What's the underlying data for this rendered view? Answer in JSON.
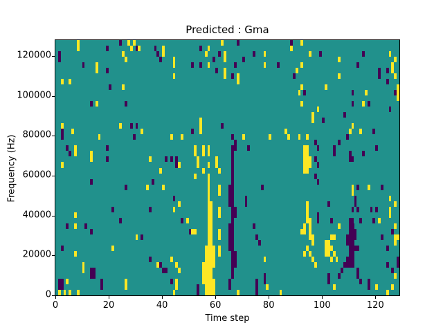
{
  "figure": {
    "background": "#ffffff"
  },
  "chart_data": {
    "type": "heatmap",
    "title": "Predicted : Gma",
    "xlabel": "Time step",
    "ylabel": "Frequency (Hz)",
    "x_range": [
      0,
      129
    ],
    "y_range": [
      0,
      128000
    ],
    "x_ticks": [
      0,
      20,
      40,
      60,
      80,
      100,
      120
    ],
    "x_tick_labels": [
      "0",
      "20",
      "40",
      "60",
      "80",
      "100",
      "120"
    ],
    "y_ticks": [
      0,
      20000,
      40000,
      60000,
      80000,
      100000,
      120000
    ],
    "y_tick_labels": [
      "0",
      "20000",
      "40000",
      "60000",
      "80000",
      "100000",
      "120000"
    ],
    "grid": {
      "cols": 129,
      "rows": 46
    },
    "legend": "none",
    "colormap": {
      "name": "viridis",
      "background_mid": "#21918c",
      "high": "#fde725",
      "low": "#440154"
    },
    "cells": {
      "yellow": [
        [
          8,
          45
        ],
        [
          8,
          44
        ],
        [
          27,
          45
        ],
        [
          29,
          45
        ],
        [
          28,
          44
        ],
        [
          31,
          44
        ],
        [
          40,
          44
        ],
        [
          40,
          43
        ],
        [
          25,
          43
        ],
        [
          26,
          42
        ],
        [
          15,
          41
        ],
        [
          15,
          40
        ],
        [
          44,
          39
        ],
        [
          2,
          38
        ],
        [
          5,
          38
        ],
        [
          25,
          37
        ],
        [
          15,
          34
        ],
        [
          2,
          30
        ],
        [
          24,
          30
        ],
        [
          6,
          29
        ],
        [
          32,
          29
        ],
        [
          16,
          28
        ],
        [
          44,
          42
        ],
        [
          44,
          41
        ],
        [
          2,
          23
        ],
        [
          7,
          26
        ],
        [
          7,
          25
        ],
        [
          13,
          25
        ],
        [
          13,
          24
        ],
        [
          35,
          24
        ],
        [
          39,
          22
        ],
        [
          34,
          19
        ],
        [
          40,
          19
        ],
        [
          62,
          45
        ],
        [
          57,
          44
        ],
        [
          56,
          43
        ],
        [
          63,
          43
        ],
        [
          63,
          42
        ],
        [
          78,
          43
        ],
        [
          78,
          41
        ],
        [
          57,
          41
        ],
        [
          63,
          40
        ],
        [
          63,
          39
        ],
        [
          68,
          39
        ],
        [
          68,
          38
        ],
        [
          70,
          28
        ],
        [
          80,
          28
        ],
        [
          54,
          31
        ],
        [
          54,
          30
        ],
        [
          54,
          29
        ],
        [
          43,
          28
        ],
        [
          47,
          28
        ],
        [
          92,
          45
        ],
        [
          88,
          44
        ],
        [
          95,
          43
        ],
        [
          106,
          42
        ],
        [
          125,
          43
        ],
        [
          127,
          42
        ],
        [
          92,
          41
        ],
        [
          90,
          40
        ],
        [
          126,
          41
        ],
        [
          126,
          40
        ],
        [
          106,
          39
        ],
        [
          127,
          39
        ],
        [
          91,
          36
        ],
        [
          128,
          37
        ],
        [
          92,
          37
        ],
        [
          101,
          37
        ],
        [
          128,
          36
        ],
        [
          116,
          36
        ],
        [
          92,
          34
        ],
        [
          115,
          34
        ],
        [
          98,
          33
        ],
        [
          96,
          32
        ],
        [
          96,
          31
        ],
        [
          128,
          35
        ],
        [
          111,
          30
        ],
        [
          114,
          29
        ],
        [
          110,
          29
        ],
        [
          86,
          29
        ],
        [
          87,
          28
        ],
        [
          91,
          28
        ],
        [
          94,
          28
        ],
        [
          7,
          14
        ],
        [
          30,
          10
        ],
        [
          21,
          8
        ],
        [
          7,
          12
        ],
        [
          7,
          7
        ],
        [
          38,
          5
        ],
        [
          10,
          5
        ],
        [
          10,
          4
        ],
        [
          4,
          2
        ],
        [
          26,
          2
        ],
        [
          26,
          1
        ],
        [
          45,
          1
        ],
        [
          43,
          6
        ],
        [
          45,
          5
        ],
        [
          46,
          4
        ],
        [
          45,
          2
        ],
        [
          44,
          15
        ],
        [
          46,
          16
        ],
        [
          49,
          13
        ],
        [
          51,
          11
        ],
        [
          46,
          23
        ],
        [
          1,
          0
        ],
        [
          3,
          0
        ],
        [
          5,
          0
        ],
        [
          8,
          0
        ],
        [
          44,
          0
        ],
        [
          68,
          0
        ],
        [
          84,
          0
        ],
        [
          104,
          1
        ],
        [
          124,
          0
        ],
        [
          126,
          1
        ],
        [
          120,
          1
        ],
        [
          52,
          26
        ],
        [
          52,
          25
        ],
        [
          53,
          24
        ],
        [
          53,
          23
        ],
        [
          55,
          26
        ],
        [
          55,
          25
        ],
        [
          52,
          21
        ],
        [
          55,
          22
        ],
        [
          57,
          26
        ],
        [
          57,
          25
        ],
        [
          57,
          23
        ],
        [
          57,
          21
        ],
        [
          60,
          24
        ],
        [
          60,
          23
        ],
        [
          61,
          22
        ],
        [
          61,
          19
        ],
        [
          61,
          18
        ],
        [
          61,
          15
        ],
        [
          61,
          14
        ],
        [
          61,
          11
        ],
        [
          61,
          10
        ],
        [
          61,
          8
        ],
        [
          61,
          7
        ],
        [
          55,
          5
        ],
        [
          55,
          4
        ],
        [
          55,
          3
        ],
        [
          55,
          2
        ],
        [
          78,
          6
        ],
        [
          79,
          1
        ],
        [
          52,
          11
        ],
        [
          111,
          19
        ],
        [
          111,
          18
        ],
        [
          117,
          19
        ],
        [
          125,
          17
        ],
        [
          125,
          15
        ],
        [
          125,
          14
        ],
        [
          121,
          13
        ],
        [
          128,
          10
        ],
        [
          106,
          12
        ],
        [
          127,
          16
        ],
        [
          127,
          12
        ],
        [
          127,
          10
        ],
        [
          127,
          9
        ],
        [
          127,
          3
        ],
        [
          94,
          16
        ],
        [
          94,
          15
        ],
        [
          94,
          14
        ],
        [
          94,
          13
        ],
        [
          95,
          13
        ],
        [
          95,
          12
        ],
        [
          95,
          11
        ],
        [
          95,
          10
        ],
        [
          96,
          10
        ],
        [
          96,
          9
        ],
        [
          93,
          12
        ],
        [
          93,
          11
        ],
        [
          92,
          11
        ],
        [
          94,
          8
        ],
        [
          95,
          7
        ],
        [
          93,
          7
        ],
        [
          96,
          6
        ],
        [
          97,
          5
        ],
        [
          101,
          9
        ],
        [
          102,
          9
        ],
        [
          101,
          8
        ],
        [
          102,
          8
        ],
        [
          103,
          8
        ],
        [
          101,
          7
        ],
        [
          102,
          7
        ],
        [
          104,
          7
        ],
        [
          103,
          6
        ],
        [
          105,
          6
        ],
        [
          104,
          10
        ],
        [
          103,
          10
        ]
      ],
      "yellow_blocks": [
        [
          93,
          22,
          2,
          5
        ],
        [
          95,
          23,
          1,
          2
        ],
        [
          57,
          17,
          1,
          4
        ],
        [
          57,
          9,
          2,
          8
        ],
        [
          56,
          3,
          3,
          6
        ],
        [
          56,
          0,
          4,
          3
        ],
        [
          59,
          5,
          1,
          4
        ]
      ],
      "purple": [
        [
          24,
          45
        ],
        [
          19,
          44
        ],
        [
          30,
          44
        ],
        [
          37,
          44
        ],
        [
          1,
          43
        ],
        [
          1,
          42
        ],
        [
          38,
          43
        ],
        [
          39,
          42
        ],
        [
          10,
          41
        ],
        [
          19,
          40
        ],
        [
          20,
          37
        ],
        [
          13,
          34
        ],
        [
          26,
          34
        ],
        [
          28,
          30
        ],
        [
          30,
          30
        ],
        [
          2,
          29
        ],
        [
          29,
          28
        ],
        [
          2,
          28
        ],
        [
          4,
          26
        ],
        [
          19,
          26
        ],
        [
          19,
          24
        ],
        [
          5,
          25
        ],
        [
          41,
          24
        ],
        [
          45,
          24
        ],
        [
          43,
          24
        ],
        [
          45,
          23
        ],
        [
          13,
          20
        ],
        [
          36,
          20
        ],
        [
          26,
          19
        ],
        [
          44,
          17
        ],
        [
          47,
          13
        ],
        [
          50,
          11
        ],
        [
          13,
          11
        ],
        [
          11,
          12
        ],
        [
          4,
          12
        ],
        [
          21,
          15
        ],
        [
          24,
          13
        ],
        [
          35,
          15
        ],
        [
          32,
          10
        ],
        [
          2,
          8
        ],
        [
          35,
          6
        ],
        [
          39,
          5
        ],
        [
          40,
          4
        ],
        [
          41,
          4
        ],
        [
          13,
          4
        ],
        [
          14,
          4
        ],
        [
          13,
          3
        ],
        [
          14,
          3
        ],
        [
          1,
          2
        ],
        [
          1,
          1
        ],
        [
          2,
          2
        ],
        [
          2,
          1
        ],
        [
          17,
          2
        ],
        [
          17,
          1
        ],
        [
          43,
          2
        ],
        [
          53,
          1
        ],
        [
          53,
          0
        ],
        [
          54,
          44
        ],
        [
          61,
          43
        ],
        [
          59,
          42
        ],
        [
          70,
          42
        ],
        [
          74,
          43
        ],
        [
          51,
          41
        ],
        [
          54,
          41
        ],
        [
          67,
          41
        ],
        [
          60,
          40
        ],
        [
          66,
          39
        ],
        [
          62,
          30
        ],
        [
          51,
          29
        ],
        [
          66,
          28
        ],
        [
          68,
          45
        ],
        [
          88,
          45
        ],
        [
          83,
          41
        ],
        [
          89,
          39
        ],
        [
          93,
          36
        ],
        [
          99,
          43
        ],
        [
          115,
          43
        ],
        [
          113,
          41
        ],
        [
          121,
          40
        ],
        [
          124,
          40
        ],
        [
          121,
          39
        ],
        [
          124,
          38
        ],
        [
          111,
          36
        ],
        [
          127,
          36
        ],
        [
          117,
          34
        ],
        [
          111,
          34
        ],
        [
          125,
          33
        ],
        [
          100,
          31
        ],
        [
          108,
          32
        ],
        [
          119,
          29
        ],
        [
          120,
          26
        ],
        [
          115,
          25
        ],
        [
          111,
          24
        ],
        [
          110,
          24
        ],
        [
          104,
          26
        ],
        [
          104,
          25
        ],
        [
          106,
          27
        ],
        [
          97,
          27
        ],
        [
          98,
          26
        ],
        [
          97,
          24
        ],
        [
          98,
          23
        ],
        [
          97,
          21
        ],
        [
          98,
          20
        ],
        [
          110,
          25
        ],
        [
          109,
          28
        ],
        [
          102,
          16
        ],
        [
          98,
          13
        ],
        [
          98,
          14
        ],
        [
          102,
          2
        ],
        [
          102,
          3
        ],
        [
          111,
          15
        ],
        [
          113,
          15
        ],
        [
          103,
          13
        ],
        [
          113,
          19
        ],
        [
          122,
          19
        ],
        [
          112,
          17
        ],
        [
          112,
          16
        ],
        [
          118,
          15
        ],
        [
          120,
          15
        ],
        [
          114,
          13
        ],
        [
          119,
          13
        ],
        [
          122,
          10
        ],
        [
          126,
          11
        ],
        [
          113,
          4
        ],
        [
          113,
          3
        ],
        [
          114,
          2
        ],
        [
          117,
          1
        ],
        [
          117,
          2
        ],
        [
          124,
          8
        ],
        [
          128,
          6
        ],
        [
          128,
          5
        ],
        [
          124,
          5
        ],
        [
          126,
          4
        ],
        [
          71,
          17
        ],
        [
          71,
          16
        ],
        [
          74,
          12
        ],
        [
          75,
          10
        ],
        [
          76,
          9
        ],
        [
          77,
          19
        ],
        [
          72,
          26
        ],
        [
          78,
          2
        ],
        [
          78,
          3
        ],
        [
          109,
          10
        ],
        [
          109,
          9
        ],
        [
          109,
          6
        ],
        [
          109,
          5
        ],
        [
          112,
          11
        ],
        [
          112,
          10
        ],
        [
          112,
          8
        ],
        [
          113,
          8
        ],
        [
          108,
          5
        ],
        [
          106,
          3
        ],
        [
          107,
          4
        ],
        [
          111,
          13
        ],
        [
          110,
          13
        ],
        [
          66,
          24
        ],
        [
          66,
          25
        ],
        [
          66,
          26
        ],
        [
          67,
          26
        ],
        [
          67,
          27
        ],
        [
          65,
          1
        ],
        [
          65,
          2
        ]
      ],
      "purple_blocks": [
        [
          66,
          3,
          1,
          21
        ],
        [
          65,
          8,
          1,
          5
        ],
        [
          65,
          16,
          1,
          4
        ],
        [
          67,
          5,
          1,
          3
        ],
        [
          67,
          14,
          1,
          2
        ],
        [
          75,
          0,
          1,
          3
        ],
        [
          110,
          5,
          2,
          8
        ]
      ]
    }
  }
}
